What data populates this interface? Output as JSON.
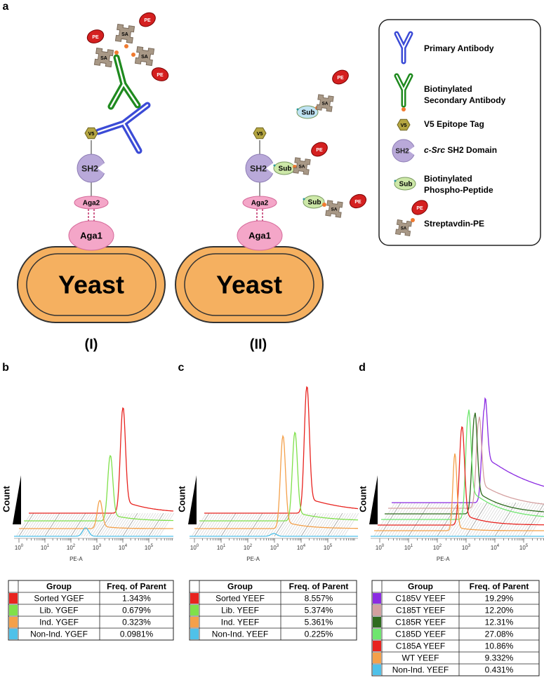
{
  "diagram": {
    "label": "a",
    "labels": {
      "sa": "SA",
      "pe": "PE",
      "v5": "V5",
      "sh2": "SH2",
      "sub": "Sub",
      "aga1": "Aga1",
      "aga2": "Aga2",
      "yeast": "Yeast"
    },
    "constructs": [
      "(I)",
      "(II)"
    ]
  },
  "legend": [
    {
      "lines": [
        "Primary Antibody"
      ]
    },
    {
      "lines": [
        "Biotinylated",
        "Secondary Antibody"
      ]
    },
    {
      "lines": [
        "V5 Epitope Tag"
      ]
    },
    {
      "italic": "c-Src",
      "lines": [
        "SH2 Domain"
      ]
    },
    {
      "lines": [
        "Biotinylated",
        "Phospho-Peptide"
      ]
    },
    {
      "lines": [
        "Streptavdin-PE"
      ]
    }
  ],
  "panels": [
    {
      "label": "b",
      "y_label": "Count",
      "x_label": "PE-A",
      "x_tick_base": "10",
      "x_tick_exponents": [
        "0",
        "1",
        "2",
        "3",
        "4",
        "5"
      ],
      "table": {
        "header": [
          "Group",
          "Freq. of Parent"
        ],
        "rows": [
          {
            "color": "#e8231f",
            "group": "Sorted YGEF",
            "freq": "1.343%"
          },
          {
            "color": "#7fe04a",
            "group": "Lib. YGEF",
            "freq": "0.679%"
          },
          {
            "color": "#f4a04a",
            "group": "Ind. YGEF",
            "freq": "0.323%"
          },
          {
            "color": "#4fc1e9",
            "group": "Non-Ind. YGEF",
            "freq": "0.0981%"
          }
        ]
      }
    },
    {
      "label": "c",
      "y_label": "Count",
      "x_label": "PE-A",
      "x_tick_base": "10",
      "x_tick_exponents": [
        "0",
        "1",
        "2",
        "3",
        "4",
        "5"
      ],
      "table": {
        "header": [
          "Group",
          "Freq. of Parent"
        ],
        "rows": [
          {
            "color": "#e8231f",
            "group": "Sorted YEEF",
            "freq": "8.557%"
          },
          {
            "color": "#7fe04a",
            "group": "Lib. YEEF",
            "freq": "5.374%"
          },
          {
            "color": "#f4a04a",
            "group": "Ind. YEEF",
            "freq": "5.361%"
          },
          {
            "color": "#4fc1e9",
            "group": "Non-Ind. YEEF",
            "freq": "0.225%"
          }
        ]
      }
    },
    {
      "label": "d",
      "y_label": "Count",
      "x_label": "PE-A",
      "x_tick_base": "10",
      "x_tick_exponents": [
        "0",
        "1",
        "2",
        "3",
        "4",
        "5"
      ],
      "table": {
        "header": [
          "Group",
          "Freq. of Parent"
        ],
        "rows": [
          {
            "color": "#8b2be2",
            "group": "C185V YEEF",
            "freq": "19.29%"
          },
          {
            "color": "#d4a0a0",
            "group": "C185T YEEF",
            "freq": "12.20%"
          },
          {
            "color": "#2e6b1e",
            "group": "C185R YEEF",
            "freq": "12.31%"
          },
          {
            "color": "#6ee66e",
            "group": "C185D YEEF",
            "freq": "27.08%"
          },
          {
            "color": "#e8231f",
            "group": "C185A YEEF",
            "freq": "10.86%"
          },
          {
            "color": "#f4a04a",
            "group": "WT YEEF",
            "freq": "9.332%"
          },
          {
            "color": "#4fc1e9",
            "group": "Non-Ind. YEEF",
            "freq": "0.431%"
          }
        ]
      }
    }
  ]
}
